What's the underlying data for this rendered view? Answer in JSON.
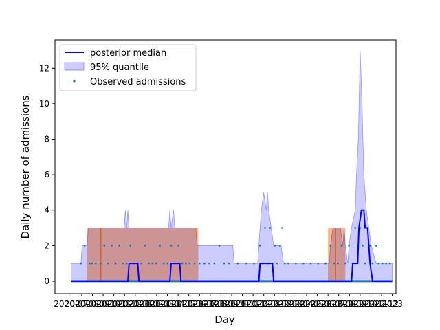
{
  "chart_data": {
    "type": "line",
    "xlabel": "Day",
    "ylabel": "Daily number of admissions",
    "ylim": [
      -0.7,
      13.6
    ],
    "xlim": [
      -1.3,
      26.3
    ],
    "y_ticks": [
      0,
      2,
      4,
      6,
      8,
      10,
      12
    ],
    "x_tick_labels": [
      "2020-07",
      "2020-08",
      "2020-09",
      "2020-10",
      "2020-11",
      "2020-12",
      "2021-01",
      "2021-02",
      "2021-03",
      "2021-04",
      "2021-05",
      "2021-06",
      "2021-07",
      "2021-08",
      "2021-09",
      "2021-10",
      "2021-11",
      "2021-12",
      "2022-01",
      "2022-02",
      "2022-03",
      "2022-04",
      "2022-05",
      "2022-06",
      "2022-07",
      "2022-08",
      "2022-09",
      "2022-10",
      "2022-11",
      "2022-12",
      "2023"
    ],
    "grid": false,
    "legend_position": "upper-left",
    "legend": [
      {
        "label": "posterior median",
        "kind": "line",
        "color": "#0000ff"
      },
      {
        "label": "95% quantile",
        "kind": "patch",
        "color": "#0000ff"
      },
      {
        "label": "Observed admissions",
        "kind": "marker",
        "color": "#1f77b4"
      }
    ],
    "interventions": [
      {
        "start": 1.3,
        "end": 10.3,
        "color": "#ff7f0e"
      },
      {
        "start": 20.8,
        "end": 22.2,
        "color": "#ff7f0e"
      }
    ],
    "intervention_lines": [
      2.4,
      21.4
    ],
    "median": [
      [
        0,
        0
      ],
      [
        4.6,
        0
      ],
      [
        4.7,
        1
      ],
      [
        5.4,
        1
      ],
      [
        5.5,
        0
      ],
      [
        8.0,
        0
      ],
      [
        8.1,
        1
      ],
      [
        8.8,
        1
      ],
      [
        8.9,
        0
      ],
      [
        15.2,
        0
      ],
      [
        15.3,
        1
      ],
      [
        16.3,
        1
      ],
      [
        16.4,
        0
      ],
      [
        22.7,
        0
      ],
      [
        22.8,
        1
      ],
      [
        23.2,
        1
      ],
      [
        23.3,
        3
      ],
      [
        23.5,
        4
      ],
      [
        23.7,
        4
      ],
      [
        23.8,
        3
      ],
      [
        24.0,
        3
      ],
      [
        24.2,
        1
      ],
      [
        24.4,
        0
      ],
      [
        26,
        0
      ]
    ],
    "band_upper": [
      [
        0,
        1
      ],
      [
        0.8,
        1
      ],
      [
        0.9,
        2
      ],
      [
        1.3,
        2
      ],
      [
        1.4,
        3
      ],
      [
        4.3,
        3
      ],
      [
        4.4,
        4
      ],
      [
        4.5,
        3
      ],
      [
        4.6,
        4
      ],
      [
        4.7,
        3
      ],
      [
        7.9,
        3
      ],
      [
        8.0,
        4
      ],
      [
        8.1,
        3
      ],
      [
        8.3,
        4
      ],
      [
        8.4,
        3
      ],
      [
        10.1,
        3
      ],
      [
        10.2,
        2
      ],
      [
        13.1,
        2
      ],
      [
        13.2,
        1
      ],
      [
        15.1,
        1
      ],
      [
        15.2,
        2
      ],
      [
        15.4,
        4
      ],
      [
        15.6,
        5
      ],
      [
        15.8,
        4
      ],
      [
        15.9,
        5
      ],
      [
        16.0,
        4
      ],
      [
        16.2,
        3
      ],
      [
        16.4,
        2
      ],
      [
        17.0,
        2
      ],
      [
        17.2,
        1
      ],
      [
        20.9,
        1
      ],
      [
        21.0,
        2
      ],
      [
        21.2,
        3
      ],
      [
        21.8,
        3
      ],
      [
        22.0,
        2
      ],
      [
        22.1,
        3
      ],
      [
        22.2,
        2
      ],
      [
        22.4,
        1
      ],
      [
        22.5,
        2
      ],
      [
        22.7,
        3
      ],
      [
        23.0,
        4
      ],
      [
        23.1,
        6
      ],
      [
        23.25,
        8
      ],
      [
        23.4,
        13
      ],
      [
        23.55,
        10
      ],
      [
        23.7,
        6
      ],
      [
        23.9,
        4
      ],
      [
        24.1,
        3
      ],
      [
        24.3,
        2
      ],
      [
        24.7,
        1
      ],
      [
        26,
        1
      ]
    ],
    "band_lower": [
      [
        0,
        0
      ],
      [
        26,
        0
      ]
    ],
    "observed_nonzero": [
      [
        0.8,
        1
      ],
      [
        1.1,
        2
      ],
      [
        1.5,
        1
      ],
      [
        1.7,
        1
      ],
      [
        2.0,
        1
      ],
      [
        2.4,
        1
      ],
      [
        2.7,
        2
      ],
      [
        3.0,
        1
      ],
      [
        3.3,
        2
      ],
      [
        3.6,
        1
      ],
      [
        3.9,
        2
      ],
      [
        4.2,
        1
      ],
      [
        4.5,
        1
      ],
      [
        4.8,
        2
      ],
      [
        5.1,
        1
      ],
      [
        5.4,
        1
      ],
      [
        5.7,
        1
      ],
      [
        6.0,
        2
      ],
      [
        6.3,
        1
      ],
      [
        6.6,
        1
      ],
      [
        6.9,
        1
      ],
      [
        7.2,
        2
      ],
      [
        7.5,
        1
      ],
      [
        7.8,
        1
      ],
      [
        8.1,
        2
      ],
      [
        8.4,
        1
      ],
      [
        8.7,
        2
      ],
      [
        9.0,
        1
      ],
      [
        9.3,
        1
      ],
      [
        9.6,
        1
      ],
      [
        10.0,
        1
      ],
      [
        10.4,
        1
      ],
      [
        10.8,
        1
      ],
      [
        11.2,
        1
      ],
      [
        11.6,
        1
      ],
      [
        12.0,
        2
      ],
      [
        12.4,
        1
      ],
      [
        12.8,
        1
      ],
      [
        13.5,
        1
      ],
      [
        14.2,
        1
      ],
      [
        14.8,
        1
      ],
      [
        15.3,
        2
      ],
      [
        15.5,
        1
      ],
      [
        15.7,
        3
      ],
      [
        15.9,
        1
      ],
      [
        16.1,
        3
      ],
      [
        16.3,
        1
      ],
      [
        16.5,
        2
      ],
      [
        16.7,
        1
      ],
      [
        16.9,
        2
      ],
      [
        17.1,
        3
      ],
      [
        17.3,
        1
      ],
      [
        17.6,
        1
      ],
      [
        18.2,
        1
      ],
      [
        18.8,
        1
      ],
      [
        19.4,
        1
      ],
      [
        20.0,
        1
      ],
      [
        20.6,
        1
      ],
      [
        21.0,
        2
      ],
      [
        21.3,
        1
      ],
      [
        21.6,
        1
      ],
      [
        21.9,
        2
      ],
      [
        22.2,
        1
      ],
      [
        22.5,
        2
      ],
      [
        22.8,
        1
      ],
      [
        23.0,
        3
      ],
      [
        23.2,
        2
      ],
      [
        23.4,
        3
      ],
      [
        23.6,
        2
      ],
      [
        23.8,
        1
      ],
      [
        24.0,
        3
      ],
      [
        24.2,
        2
      ],
      [
        24.4,
        1
      ],
      [
        24.7,
        2
      ],
      [
        24.9,
        1
      ],
      [
        25.2,
        1
      ],
      [
        25.5,
        1
      ],
      [
        25.8,
        1
      ]
    ]
  }
}
